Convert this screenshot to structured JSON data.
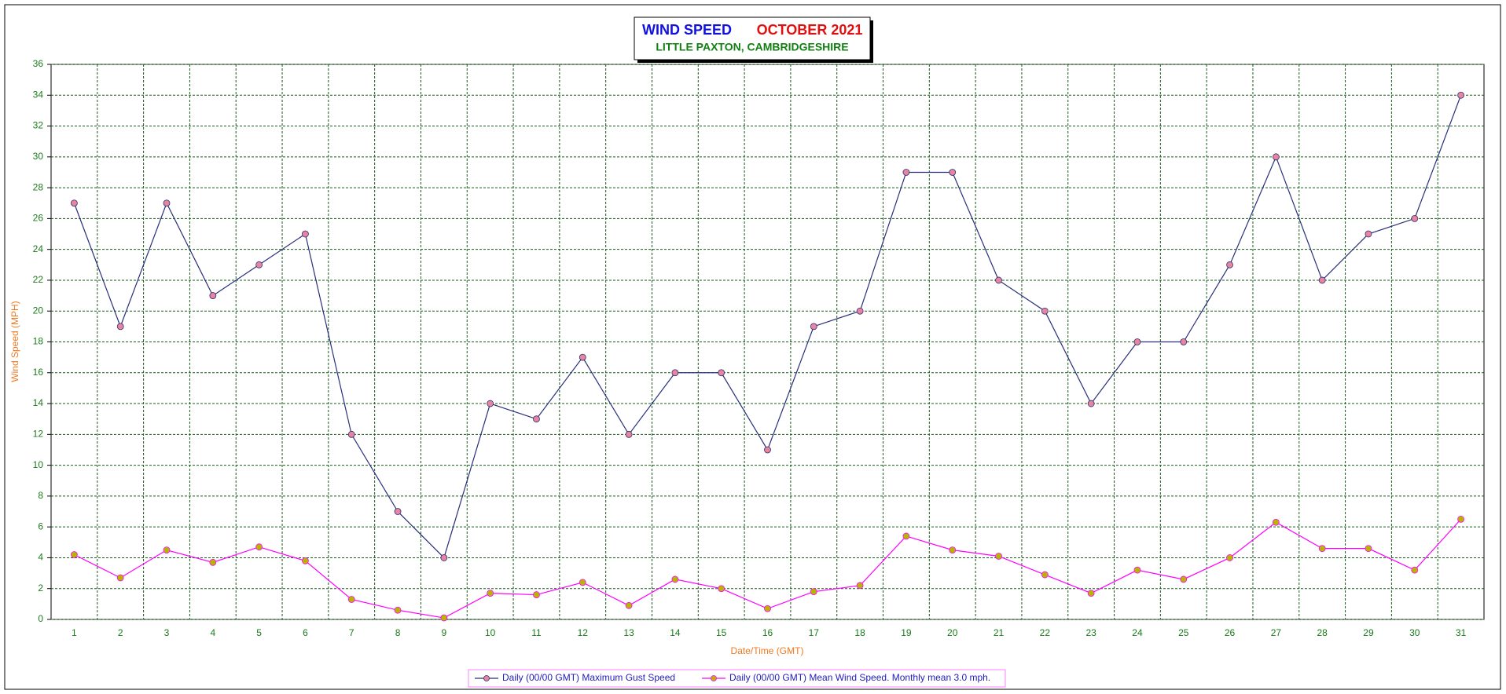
{
  "chart_data": {
    "type": "line",
    "title": "WIND SPEED",
    "period": "OCTOBER 2021",
    "subtitle": "LITTLE PAXTON, CAMBRIDGESHIRE",
    "ylabel": "Wind Speed (MPH)",
    "xlabel": "Date/Time (GMT)",
    "categories": [
      "1",
      "2",
      "3",
      "4",
      "5",
      "6",
      "7",
      "8",
      "9",
      "10",
      "11",
      "12",
      "13",
      "14",
      "15",
      "16",
      "17",
      "18",
      "19",
      "20",
      "21",
      "22",
      "23",
      "24",
      "25",
      "26",
      "27",
      "28",
      "29",
      "30",
      "31"
    ],
    "series": [
      {
        "name": "Daily (00/00 GMT) Maximum Gust Speed",
        "color": "#28307a",
        "marker_color": "#e8849c",
        "values": [
          27,
          19,
          27,
          21,
          23,
          25,
          12,
          7,
          4,
          14,
          13,
          17,
          12,
          16,
          16,
          11,
          19,
          20,
          29,
          29,
          22,
          20,
          14,
          18,
          18,
          23,
          30,
          22,
          25,
          26,
          34
        ]
      },
      {
        "name": "Daily (00/00 GMT) Mean Wind Speed. Monthly mean 3.0 mph.",
        "color": "#ff00ff",
        "marker_color": "#b8b400",
        "values": [
          4.2,
          2.7,
          4.5,
          3.7,
          4.7,
          3.8,
          1.3,
          0.6,
          0.1,
          1.7,
          1.6,
          2.4,
          0.9,
          2.6,
          2.0,
          0.7,
          1.8,
          2.2,
          5.4,
          4.5,
          4.1,
          2.9,
          1.7,
          3.2,
          2.6,
          4.0,
          6.3,
          4.6,
          4.6,
          3.2,
          6.5
        ]
      }
    ],
    "ylim": [
      0,
      36
    ],
    "yticks": [
      0,
      2,
      4,
      6,
      8,
      10,
      12,
      14,
      16,
      18,
      20,
      22,
      24,
      26,
      28,
      30,
      32,
      34,
      36
    ],
    "grid": true,
    "legend": "bottom"
  }
}
